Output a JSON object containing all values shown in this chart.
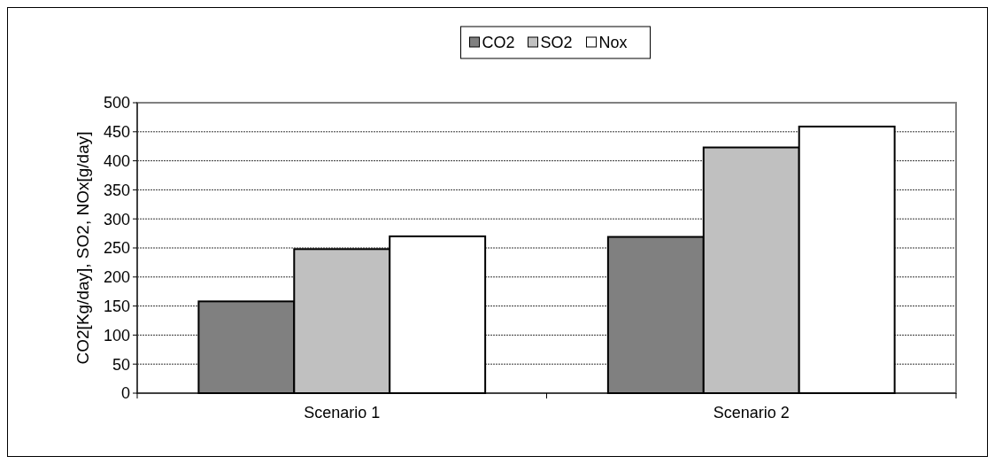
{
  "chart_data": {
    "type": "bar",
    "categories": [
      "Scenario 1",
      "Scenario 2"
    ],
    "series": [
      {
        "name": "CO2",
        "color": "#808080",
        "values": [
          158,
          269
        ]
      },
      {
        "name": "SO2",
        "color": "#c0c0c0",
        "values": [
          248,
          423
        ]
      },
      {
        "name": "Nox",
        "color": "#ffffff",
        "values": [
          270,
          459
        ]
      }
    ],
    "ylabel": "CO2[Kg/day], SO2, NOx[g/day]",
    "ylim": [
      0,
      500
    ],
    "yticks": [
      0,
      50,
      100,
      150,
      200,
      250,
      300,
      350,
      400,
      450,
      500
    ],
    "grid": "y",
    "legend": "top"
  }
}
